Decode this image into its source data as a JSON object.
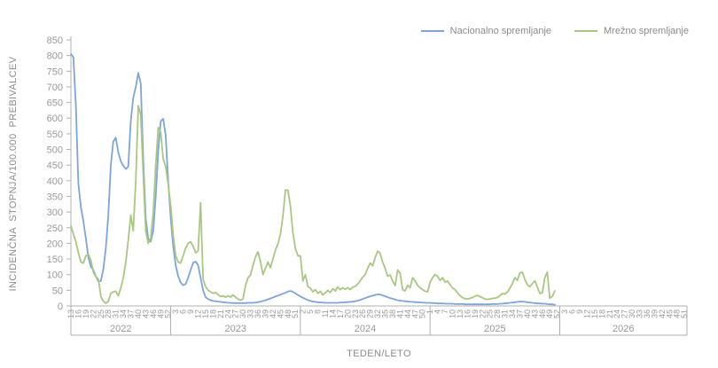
{
  "colors": {
    "background": "#ffffff",
    "axis": "#b0b0b0",
    "labels": "#999999",
    "legend_text": "#8c8c8c",
    "blue_series": "#7ca5dd",
    "green_series": "#a9c87f"
  },
  "chart_data": {
    "type": "line",
    "title": "",
    "xlabel": "TEDEN/LETO",
    "ylabel": "INCIDENČNA  STOPNJA/100.000  PREBIVALCEV",
    "ylim": [
      0,
      850
    ],
    "y_ticks": [
      0,
      50,
      100,
      150,
      200,
      250,
      300,
      350,
      400,
      450,
      500,
      550,
      600,
      650,
      700,
      750,
      800,
      850
    ],
    "grid": false,
    "legend_position": "top-right",
    "x_axis": {
      "total_weeks": 248,
      "tick_step_weeks": 3,
      "years": [
        {
          "label": "2022",
          "first_week": 13,
          "weeks": 40,
          "tick_weeks": [
            13,
            16,
            19,
            22,
            25,
            28,
            31,
            34,
            37,
            40,
            43,
            46,
            49,
            52
          ]
        },
        {
          "label": "2023",
          "first_week": 1,
          "weeks": 52,
          "tick_weeks": [
            3,
            6,
            9,
            12,
            15,
            18,
            21,
            24,
            27,
            30,
            33,
            36,
            39,
            42,
            45,
            48,
            51
          ]
        },
        {
          "label": "2024",
          "first_week": 1,
          "weeks": 52,
          "tick_weeks": [
            2,
            5,
            8,
            11,
            14,
            17,
            20,
            23,
            26,
            29,
            32,
            35,
            38,
            41,
            44,
            47,
            50
          ]
        },
        {
          "label": "2025",
          "first_week": 1,
          "weeks": 52,
          "tick_weeks": [
            1,
            4,
            7,
            10,
            13,
            16,
            19,
            22,
            25,
            28,
            31,
            34,
            37,
            40,
            43,
            46,
            49,
            52
          ]
        },
        {
          "label": "2026",
          "first_week": 1,
          "weeks": 52,
          "tick_weeks": [
            3,
            6,
            9,
            12,
            15,
            18,
            21,
            24,
            27,
            30,
            33,
            36,
            39,
            42,
            45,
            48,
            51
          ]
        }
      ]
    },
    "series": [
      {
        "id": "nacionalno",
        "name": "Nacionalno spremljanje",
        "color": "#7ca5dd",
        "values": [
          805,
          795,
          640,
          390,
          315,
          270,
          215,
          155,
          125,
          115,
          95,
          78,
          80,
          118,
          185,
          290,
          450,
          525,
          538,
          490,
          462,
          448,
          438,
          445,
          590,
          665,
          700,
          745,
          710,
          470,
          280,
          215,
          205,
          240,
          350,
          495,
          590,
          598,
          545,
          400,
          280,
          190,
          130,
          95,
          75,
          66,
          70,
          90,
          115,
          138,
          142,
          130,
          90,
          50,
          28,
          22,
          18,
          16,
          15,
          14,
          13,
          12,
          11,
          10,
          10,
          9,
          9,
          9,
          9,
          9,
          9,
          10,
          10,
          10,
          11,
          12,
          14,
          16,
          18,
          21,
          24,
          27,
          30,
          33,
          36,
          39,
          42,
          46,
          48,
          45,
          40,
          35,
          30,
          26,
          22,
          19,
          16,
          14,
          13,
          12,
          11,
          11,
          10,
          10,
          10,
          10,
          10,
          10,
          11,
          11,
          12,
          12,
          13,
          14,
          15,
          17,
          19,
          22,
          25,
          28,
          31,
          33,
          35,
          37,
          36,
          34,
          31,
          28,
          25,
          23,
          20,
          18,
          17,
          16,
          15,
          14,
          13,
          13,
          12,
          12,
          11,
          11,
          10,
          10,
          10,
          9,
          9,
          8,
          8,
          8,
          7,
          7,
          7,
          7,
          6,
          6,
          6,
          6,
          5,
          5,
          5,
          5,
          5,
          5,
          5,
          5,
          5,
          5,
          5,
          6,
          6,
          6,
          7,
          7,
          8,
          9,
          10,
          11,
          12,
          13,
          14,
          14,
          13,
          12,
          11,
          10,
          9,
          8,
          8,
          7,
          7,
          6,
          5,
          5,
          4
        ]
      },
      {
        "id": "mrezno",
        "name": "Mrežno spremljanje",
        "color": "#a9c87f",
        "values": [
          255,
          230,
          205,
          170,
          140,
          137,
          160,
          165,
          146,
          108,
          94,
          85,
          30,
          15,
          8,
          15,
          40,
          45,
          47,
          33,
          57,
          90,
          140,
          210,
          290,
          240,
          400,
          640,
          610,
          420,
          240,
          200,
          215,
          300,
          450,
          570,
          555,
          470,
          445,
          390,
          320,
          225,
          160,
          140,
          137,
          160,
          185,
          200,
          205,
          190,
          170,
          175,
          330,
          85,
          62,
          50,
          45,
          40,
          43,
          36,
          30,
          32,
          28,
          32,
          28,
          35,
          28,
          22,
          18,
          22,
          65,
          90,
          99,
          130,
          156,
          173,
          142,
          100,
          120,
          140,
          122,
          150,
          178,
          198,
          230,
          288,
          370,
          370,
          320,
          235,
          184,
          160,
          160,
          80,
          100,
          62,
          57,
          45,
          52,
          40,
          47,
          35,
          42,
          50,
          43,
          55,
          48,
          60,
          52,
          58,
          53,
          58,
          52,
          60,
          63,
          70,
          80,
          92,
          100,
          120,
          137,
          128,
          155,
          175,
          168,
          140,
          120,
          95,
          99,
          80,
          65,
          115,
          105,
          52,
          48,
          66,
          58,
          90,
          80,
          66,
          58,
          52,
          47,
          45,
          76,
          90,
          100,
          95,
          82,
          90,
          76,
          80,
          68,
          58,
          52,
          42,
          33,
          27,
          23,
          22,
          24,
          27,
          31,
          34,
          30,
          26,
          22,
          21,
          22,
          24,
          25,
          27,
          33,
          40,
          38,
          44,
          57,
          71,
          90,
          82,
          105,
          108,
          85,
          68,
          61,
          71,
          80,
          60,
          40,
          42,
          90,
          108,
          25,
          30,
          48
        ]
      }
    ]
  }
}
